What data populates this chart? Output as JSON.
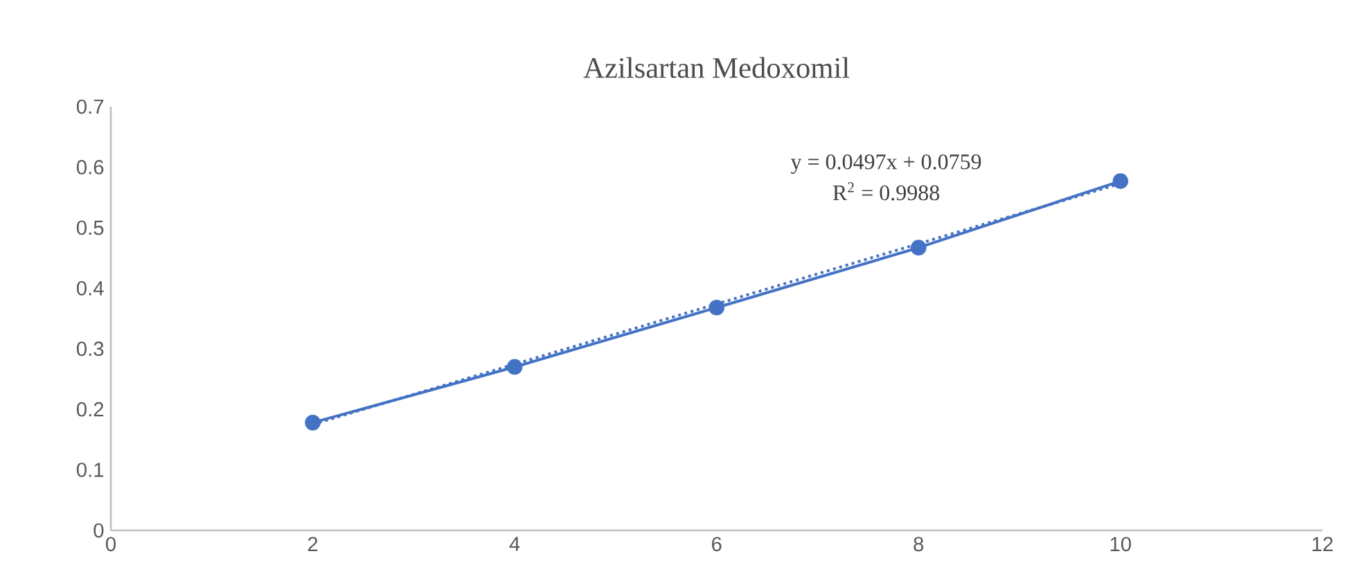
{
  "chart_data": {
    "type": "line",
    "title": "Azilsartan Medoxomil",
    "xlim": [
      0,
      12
    ],
    "xticks": [
      0,
      2,
      4,
      6,
      8,
      10,
      12
    ],
    "ylim": [
      0,
      0.7
    ],
    "yticks": [
      0,
      0.1,
      0.2,
      0.3,
      0.4,
      0.5,
      0.6,
      0.7
    ],
    "grid": false,
    "legend": false,
    "marker": "circle",
    "line_style": "solid",
    "series": [
      {
        "color": "#4472c4",
        "x": [
          2,
          4,
          6,
          8,
          10
        ],
        "values": [
          0.178,
          0.27,
          0.368,
          0.467,
          0.577
        ]
      },
      {
        "color": "#4472c4",
        "type": "line",
        "x": [
          2,
          10
        ],
        "values": [
          0.175,
          0.573
        ],
        "marker": "none",
        "line_style": "dotted"
      }
    ],
    "annotations": [
      "y = 0.0497x + 0.0759",
      "R$^{2}$ = 0.9988"
    ]
  }
}
